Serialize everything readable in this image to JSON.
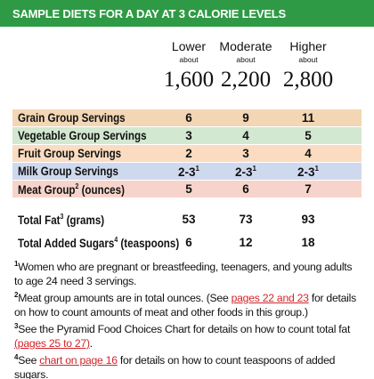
{
  "header": {
    "title": "SAMPLE DIETS FOR A DAY AT 3 CALORIE LEVELS"
  },
  "columns": [
    {
      "name": "Lower",
      "about": "about",
      "calories": "1,600"
    },
    {
      "name": "Moderate",
      "about": "about",
      "calories": "2,200"
    },
    {
      "name": "Higher",
      "about": "about",
      "calories": "2,800"
    }
  ],
  "rows": [
    {
      "label": "Grain Group Servings",
      "color": "#f3d6b3",
      "cells": [
        6,
        9,
        11
      ]
    },
    {
      "label": "Vegetable Group Servings",
      "color": "#d3e8d0",
      "cells": [
        3,
        4,
        5
      ]
    },
    {
      "label": "Fruit Group Servings",
      "color": "#fbdcc0",
      "cells": [
        2,
        3,
        4
      ]
    },
    {
      "label": "Milk Group Servings",
      "color": "#cfd9ee",
      "cells": [
        "2-3",
        "2-3",
        "2-3"
      ],
      "cell_sups": [
        "1",
        "1",
        "1"
      ]
    },
    {
      "label": "Meat Group",
      "sup": "2",
      "suffix": " (ounces)",
      "color": "#f7d4cb",
      "cells": [
        5,
        6,
        7
      ]
    }
  ],
  "totals": [
    {
      "label": "Total Fat",
      "sup": "3",
      "suffix": " (grams)",
      "cells": [
        53,
        73,
        93
      ]
    },
    {
      "label": "Total Added Sugars",
      "sup": "4",
      "suffix": " (teaspoons)",
      "cells": [
        6,
        12,
        18
      ]
    }
  ],
  "notes": [
    {
      "mark": "1",
      "parts": [
        {
          "text": "Women who are pregnant or breastfeeding, teenagers, and young adults to age 24 need 3 servings."
        }
      ]
    },
    {
      "mark": "2",
      "parts": [
        {
          "text": "Meat group amounts are in total ounces. (See "
        },
        {
          "text": "pages 22 and 23",
          "link": true
        },
        {
          "text": " for details on how to count amounts of meat and other foods in this group.)"
        }
      ]
    },
    {
      "mark": "3",
      "parts": [
        {
          "text": "See the Pyramid Food Choices Chart for details on how to count total fat "
        },
        {
          "text": "(pages 25 to 27)",
          "link": true
        },
        {
          "text": "."
        }
      ]
    },
    {
      "mark": "4",
      "parts": [
        {
          "text": "See "
        },
        {
          "text": "chart on page 16",
          "link": true
        },
        {
          "text": " for details on how to count teaspoons of added sugars."
        }
      ]
    }
  ]
}
